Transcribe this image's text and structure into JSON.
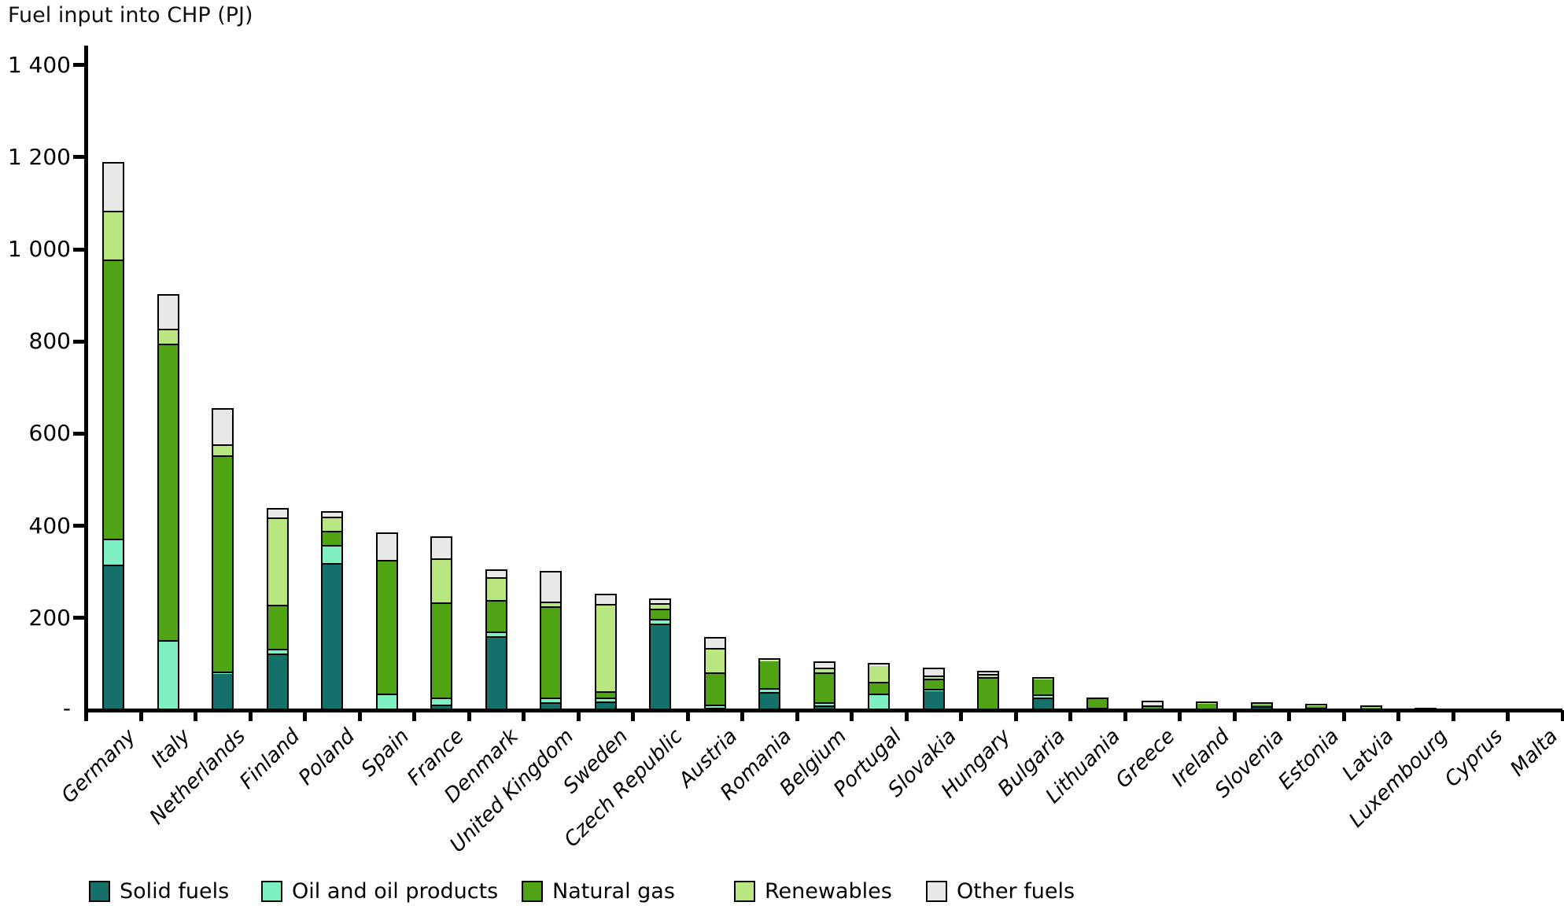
{
  "title": "Fuel input into CHP (PJ)",
  "y_axis": {
    "zero_label": "-",
    "ticks": [
      {
        "value": 1400,
        "label": "1 400"
      },
      {
        "value": 1200,
        "label": "1 200"
      },
      {
        "value": 1000,
        "label": "1 000"
      },
      {
        "value": 800,
        "label": "800"
      },
      {
        "value": 600,
        "label": "600"
      },
      {
        "value": 400,
        "label": "400"
      },
      {
        "value": 200,
        "label": "200"
      }
    ]
  },
  "legend": {
    "items": [
      "Solid fuels",
      "Oil and oil products",
      "Natural gas",
      "Renewables",
      "Other fuels"
    ],
    "x_positions": [
      113,
      332,
      663,
      933,
      1177
    ]
  },
  "chart_data": {
    "type": "bar",
    "stacked": true,
    "title": "Fuel input into CHP (PJ)",
    "ylabel": "PJ",
    "ylim": [
      0,
      1400
    ],
    "y_tick_interval": 200,
    "grid": false,
    "legend_position": "bottom",
    "categories": [
      "Germany",
      "Italy",
      "Netherlands",
      "Finland",
      "Poland",
      "Spain",
      "France",
      "Denmark",
      "United Kingdom",
      "Sweden",
      "Czech Republic",
      "Austria",
      "Romania",
      "Belgium",
      "Portugal",
      "Slovakia",
      "Hungary",
      "Bulgaria",
      "Lithuania",
      "Greece",
      "Ireland",
      "Slovenia",
      "Estonia",
      "Latvia",
      "Luxembourg",
      "Cyprus",
      "Malta"
    ],
    "series": [
      {
        "name": "Solid fuels",
        "color": "#15706a",
        "values": [
          318,
          0,
          82,
          124,
          319,
          3,
          13,
          160,
          18,
          18,
          189,
          6,
          40,
          11,
          0,
          46,
          4,
          28,
          2,
          0,
          0,
          10,
          6,
          0,
          0,
          0,
          0
        ]
      },
      {
        "name": "Oil and oil products",
        "color": "#7ff0c2",
        "values": [
          56,
          152,
          2,
          10,
          40,
          33,
          15,
          10,
          10,
          9,
          10,
          6,
          8,
          6,
          36,
          2,
          0,
          6,
          2,
          1,
          0,
          0,
          1,
          0,
          0,
          0,
          0
        ]
      },
      {
        "name": "Natural gas",
        "color": "#4fa314",
        "values": [
          605,
          643,
          469,
          95,
          30,
          290,
          206,
          68,
          198,
          13,
          22,
          70,
          62,
          65,
          26,
          22,
          70,
          36,
          23,
          9,
          18,
          6,
          6,
          9,
          4,
          0,
          0
        ]
      },
      {
        "name": "Renewables",
        "color": "#b9e680",
        "values": [
          106,
          33,
          24,
          189,
          30,
          0,
          96,
          50,
          10,
          190,
          12,
          53,
          1,
          11,
          38,
          6,
          6,
          0,
          0,
          0,
          1,
          1,
          0,
          1,
          1,
          0,
          0
        ]
      },
      {
        "name": "Other fuels",
        "color": "#e9e9e7",
        "values": [
          105,
          75,
          78,
          20,
          12,
          60,
          47,
          17,
          66,
          22,
          10,
          24,
          1,
          13,
          3,
          17,
          6,
          2,
          0,
          10,
          0,
          0,
          1,
          0,
          0,
          0,
          0
        ]
      }
    ],
    "totals": [
      1190,
      903,
      655,
      438,
      431,
      386,
      377,
      305,
      302,
      252,
      243,
      159,
      112,
      106,
      103,
      93,
      86,
      72,
      27,
      20,
      19,
      17,
      14,
      10,
      5,
      0,
      0
    ]
  }
}
